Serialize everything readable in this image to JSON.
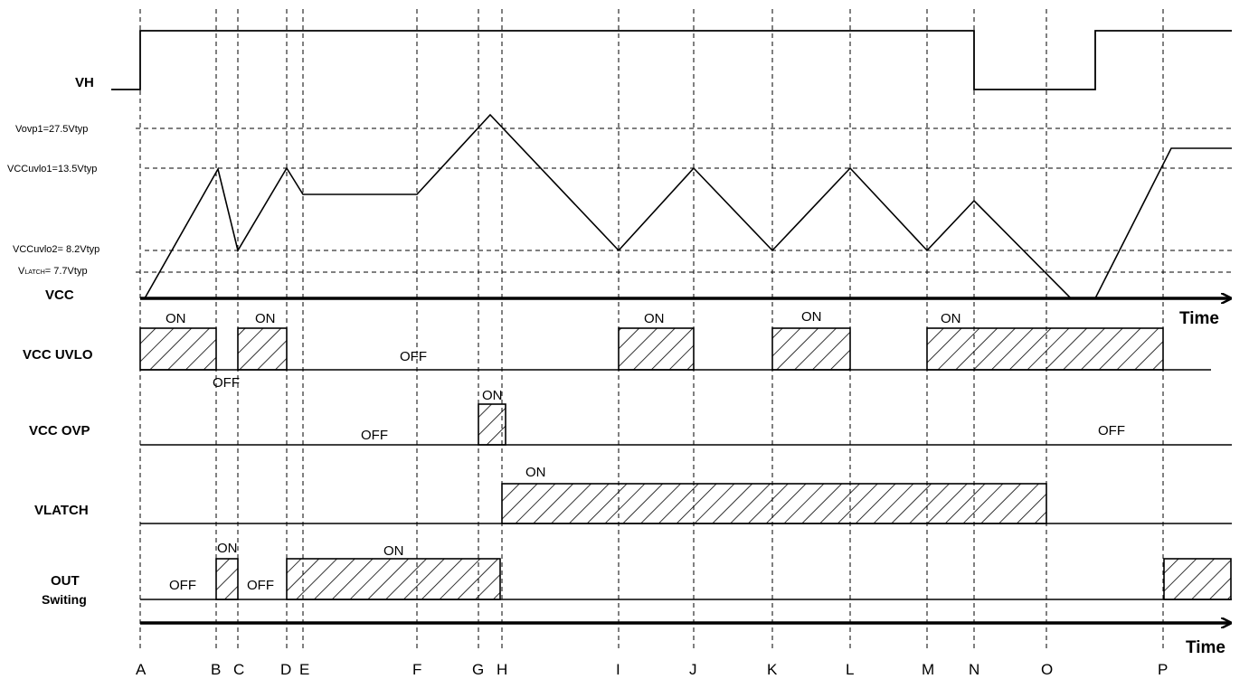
{
  "signals": {
    "vh": "VH",
    "vcc": "VCC",
    "vcc_uvlo": "VCC UVLO",
    "vcc_ovp": "VCC OVP",
    "vlatch": "VLATCH",
    "out_line1": "OUT",
    "out_line2": "Switing"
  },
  "thresholds": {
    "vovp1": "Vovp1=27.5Vtyp",
    "vccuvlo1": "VCCuvlo1=13.5Vtyp",
    "vccuvlo2": "VCCuvlo2= 8.2Vtyp",
    "vlatch_sub": "LATCH",
    "vlatch_rest": "= 7.7Vtyp"
  },
  "time_axis_label": "Time",
  "time_markers": [
    "A",
    "B",
    "C",
    "D",
    "E",
    "F",
    "G",
    "H",
    "I",
    "J",
    "K",
    "L",
    "M",
    "N",
    "O",
    "P"
  ],
  "states": {
    "on": "ON",
    "off": "OFF"
  },
  "colors": {
    "line": "#000000",
    "hatch": "#000000",
    "background": "#ffffff"
  }
}
